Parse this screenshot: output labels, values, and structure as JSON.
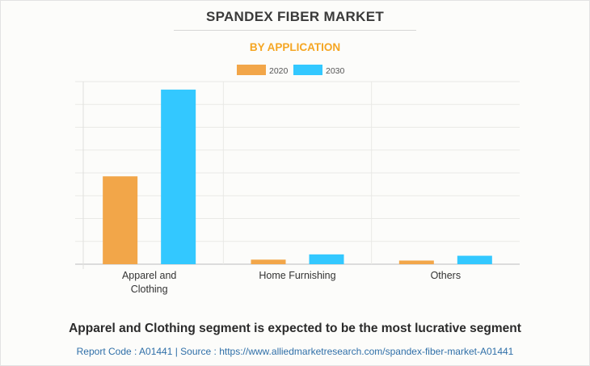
{
  "header": {
    "title": "SPANDEX FIBER MARKET",
    "subtitle": "BY APPLICATION"
  },
  "colors": {
    "title": "#3a3a3a",
    "subtitle": "#f5a623",
    "series_2020": "#f2a649",
    "series_2030": "#33c8ff",
    "source": "#2f6fa8"
  },
  "chart_data": {
    "type": "bar",
    "title": "SPANDEX FIBER MARKET",
    "subtitle": "BY APPLICATION",
    "categories": [
      "Apparel and Clothing",
      "Home Furnishing",
      "Others"
    ],
    "category_labels": [
      [
        "Apparel and",
        "Clothing"
      ],
      [
        "Home Furnishing"
      ],
      [
        "Others"
      ]
    ],
    "series": [
      {
        "name": "2020",
        "color": "#f2a649",
        "values": [
          3.85,
          0.2,
          0.16
        ]
      },
      {
        "name": "2030",
        "color": "#33c8ff",
        "values": [
          7.65,
          0.43,
          0.37
        ]
      }
    ],
    "ylim": [
      0,
      8
    ],
    "y_gridlines": 8,
    "grid": true,
    "legend": "top-center",
    "xlabel": "",
    "ylabel": ""
  },
  "footer": {
    "headline": "Apparel and Clothing segment is expected to be the most lucrative segment",
    "source": "Report Code : A01441  |  Source : https://www.alliedmarketresearch.com/spandex-fiber-market-A01441"
  }
}
